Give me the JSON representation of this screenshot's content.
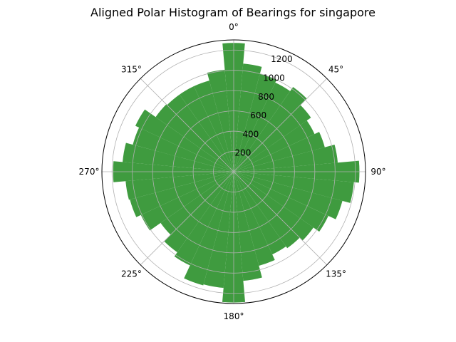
{
  "chart_data": {
    "type": "polar-bar",
    "title": "Aligned Polar Histogram of Bearings for singapore",
    "bar_color": "#3f9b3f",
    "theta_zero": "top",
    "theta_direction": "clockwise",
    "r_max": 1300,
    "r_ticks": [
      200,
      400,
      600,
      800,
      1000,
      1200
    ],
    "r_tick_labels": [
      "200",
      "400",
      "600",
      "800",
      "1000",
      "1200"
    ],
    "theta_ticks_deg": [
      0,
      45,
      90,
      135,
      180,
      225,
      270,
      315
    ],
    "theta_tick_labels": [
      "0°",
      "45°",
      "90°",
      "135°",
      "180°",
      "225°",
      "270°",
      "315°"
    ],
    "bin_width_deg": 10,
    "bin_centers_deg": [
      0,
      10,
      20,
      30,
      40,
      50,
      60,
      70,
      80,
      90,
      100,
      110,
      120,
      130,
      140,
      150,
      160,
      170,
      180,
      190,
      200,
      210,
      220,
      230,
      240,
      250,
      260,
      270,
      280,
      290,
      300,
      310,
      320,
      330,
      340,
      350
    ],
    "values": [
      1270,
      1070,
      1000,
      970,
      1020,
      930,
      880,
      930,
      1030,
      1240,
      1190,
      1110,
      1030,
      960,
      920,
      900,
      960,
      1080,
      1290,
      1150,
      1160,
      1020,
      970,
      880,
      1010,
      1060,
      1070,
      1190,
      1100,
      1030,
      1070,
      940,
      930,
      930,
      930,
      1010
    ],
    "grid": true
  }
}
